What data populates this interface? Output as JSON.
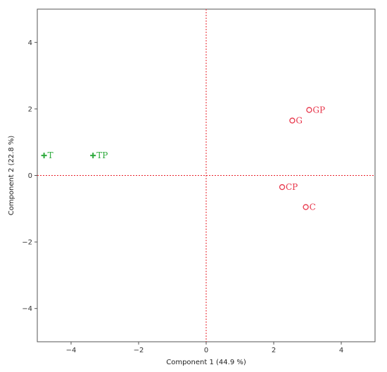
{
  "chart_data": {
    "type": "scatter",
    "xlabel": "Component 1  (44.9 %)",
    "ylabel": "Component 2  (22.8 %)",
    "xlim": [
      -5,
      5
    ],
    "ylim": [
      -5,
      5
    ],
    "xticks": [
      -4,
      -2,
      0,
      2,
      4
    ],
    "yticks": [
      -4,
      -2,
      0,
      2,
      4
    ],
    "grid": false,
    "reference_lines": [
      {
        "axis": "x",
        "value": 0,
        "color": "#e8202a",
        "style": "dotted"
      },
      {
        "axis": "y",
        "value": 0,
        "color": "#e8202a",
        "style": "dotted"
      }
    ],
    "series": [
      {
        "marker": "plus",
        "color": "#2eaa3c",
        "points": [
          {
            "label": "T",
            "x": -4.8,
            "y": 0.6
          },
          {
            "label": "TP",
            "x": -3.35,
            "y": 0.6
          }
        ]
      },
      {
        "marker": "circle",
        "color": "#e8354a",
        "points": [
          {
            "label": "GP",
            "x": 3.05,
            "y": 1.97
          },
          {
            "label": "G",
            "x": 2.55,
            "y": 1.65
          },
          {
            "label": "CP",
            "x": 2.25,
            "y": -0.35
          },
          {
            "label": "C",
            "x": 2.95,
            "y": -0.95
          }
        ]
      }
    ]
  }
}
